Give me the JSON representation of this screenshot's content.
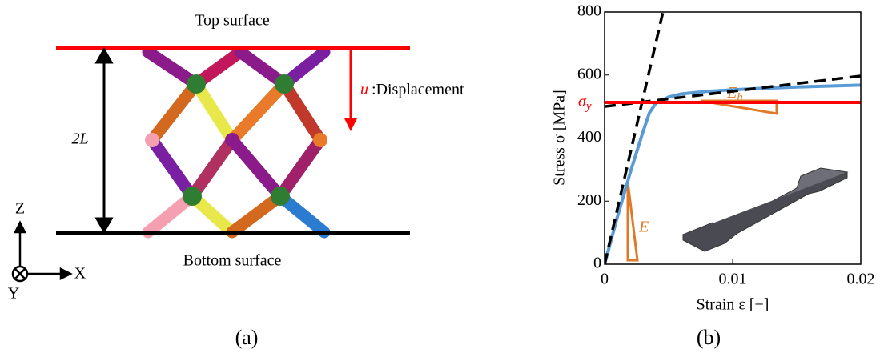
{
  "panel_a": {
    "top_label": "Top surface",
    "bottom_label": "Bottom surface",
    "length_label": "2L",
    "displacement_symbol": "u",
    "displacement_label": ":Displacement",
    "axis_z": "Z",
    "axis_x": "X",
    "axis_y": "Y",
    "caption": "(a)"
  },
  "chart_data": {
    "type": "line",
    "xlabel": "Strain ε [−]",
    "ylabel": "Stress σ [MPa]",
    "caption": "(b)",
    "xlim": [
      0,
      0.02
    ],
    "ylim": [
      0,
      800
    ],
    "xticks": [
      0,
      0.01,
      0.02
    ],
    "yticks": [
      0,
      200,
      400,
      600,
      800
    ],
    "annotations": {
      "modulus": "E",
      "hardening": {
        "base": "E",
        "sub": "h"
      },
      "yield": {
        "base": "σ",
        "sub": "y"
      }
    },
    "series": [
      {
        "color": "#5b9bd5",
        "dash": false,
        "x": [
          0,
          0.001,
          0.002,
          0.003,
          0.0035,
          0.004,
          0.005,
          0.006,
          0.008,
          0.01,
          0.012,
          0.015,
          0.02
        ],
        "values": [
          0,
          150,
          290,
          420,
          480,
          510,
          530,
          540,
          548,
          553,
          557,
          562,
          568
        ]
      },
      {
        "color": "#000000",
        "dash": true,
        "x": [
          0,
          0.00456
        ],
        "values": [
          0,
          800
        ]
      },
      {
        "color": "#000000",
        "dash": true,
        "x": [
          0,
          0.02
        ],
        "values": [
          500,
          597
        ]
      },
      {
        "color": "#ff0000",
        "dash": false,
        "x": [
          0,
          0.02
        ],
        "values": [
          513,
          513
        ]
      }
    ]
  }
}
